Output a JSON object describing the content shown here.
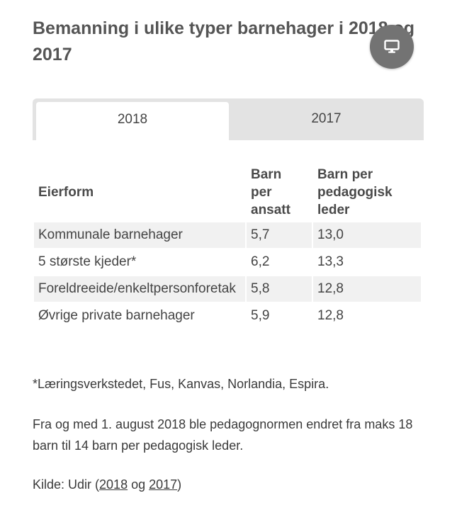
{
  "title": "Bemanning i ulike typer barnehager i 2018 og 2017",
  "tabs": [
    {
      "label": "2018",
      "active": true
    },
    {
      "label": "2017",
      "active": false
    }
  ],
  "table": {
    "headers": {
      "col1": "Eierform",
      "col2_line1": "Barn",
      "col2_line2": "per",
      "col2_line3": "ansatt",
      "col3_line1": "Barn per",
      "col3_line2": "pedagogisk",
      "col3_line3": "leder"
    },
    "rows": [
      {
        "eierform": "Kommunale barnehager",
        "barn_per_ansatt": "5,7",
        "barn_per_leder": "13,0"
      },
      {
        "eierform": "5 største kjeder*",
        "barn_per_ansatt": "6,2",
        "barn_per_leder": "13,3"
      },
      {
        "eierform": "Foreldreeide/enkeltpersonforetak",
        "barn_per_ansatt": "5,8",
        "barn_per_leder": "12,8"
      },
      {
        "eierform": "Øvrige private barnehager",
        "barn_per_ansatt": "5,9",
        "barn_per_leder": "12,8"
      }
    ]
  },
  "footnote": "*Læringsverkstedet, Fus, Kanvas, Norlandia, Espira.",
  "info": "Fra og med 1. august 2018 ble pedagognormen endret fra maks 18 barn til 14 barn per pedagogisk leder.",
  "source": {
    "prefix": "Kilde: Udir (",
    "link1": "2018",
    "separator": " og ",
    "link2": "2017",
    "suffix": ")"
  },
  "colors": {
    "title": "#555555",
    "tab_bar": "#e3e3e3",
    "row_shade": "#f1f1f1",
    "fab": "#737373"
  },
  "icons": {
    "desktop_button": "monitor-icon"
  }
}
